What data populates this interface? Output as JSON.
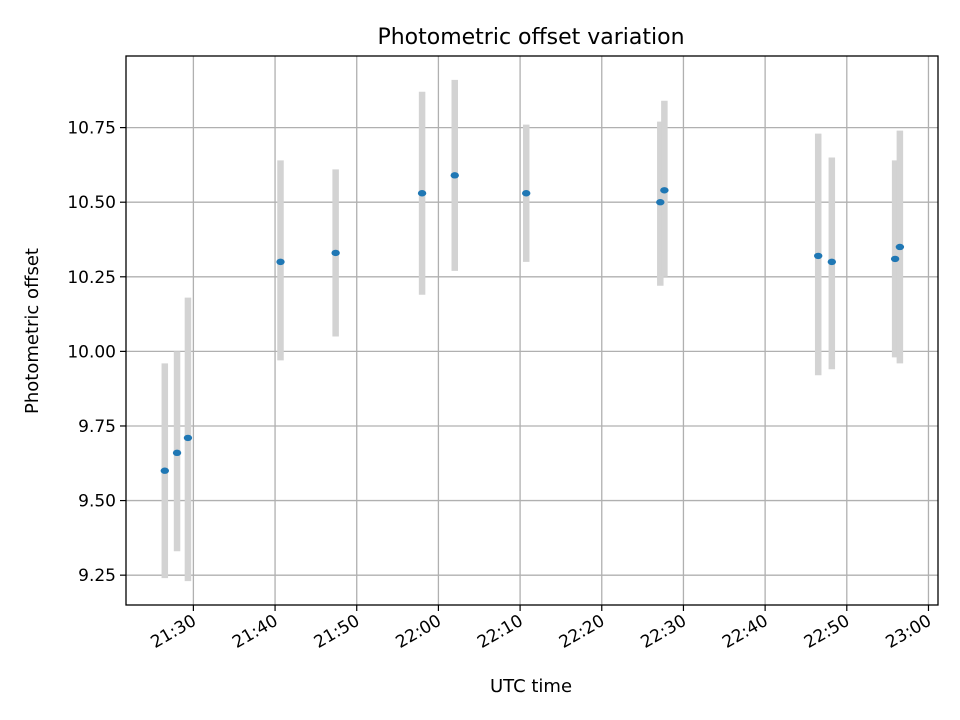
{
  "chart_data": {
    "type": "scatter",
    "title": "Photometric offset variation",
    "xlabel": "UTC time",
    "ylabel": "Photometric offset",
    "x_tick_labels": [
      "21:30",
      "21:40",
      "21:50",
      "22:00",
      "22:10",
      "22:20",
      "22:30",
      "22:40",
      "22:50",
      "23:00"
    ],
    "y_tick_labels": [
      "9.25",
      "9.50",
      "9.75",
      "10.00",
      "10.25",
      "10.50",
      "10.75"
    ],
    "xlim": [
      "21:21:45",
      "23:01:10"
    ],
    "ylim": [
      9.15,
      10.99
    ],
    "grid": true,
    "series": [
      {
        "marker_color": "#1f77b4",
        "errorbar_color": "#d3d3d3",
        "points": [
          {
            "x": "21:26:30",
            "y": 9.6,
            "ylow": 9.24,
            "yhigh": 9.96
          },
          {
            "x": "21:28:00",
            "y": 9.66,
            "ylow": 9.33,
            "yhigh": 10.0
          },
          {
            "x": "21:29:20",
            "y": 9.71,
            "ylow": 9.23,
            "yhigh": 10.18
          },
          {
            "x": "21:40:40",
            "y": 10.3,
            "ylow": 9.97,
            "yhigh": 10.64
          },
          {
            "x": "21:47:25",
            "y": 10.33,
            "ylow": 10.05,
            "yhigh": 10.61
          },
          {
            "x": "21:58:00",
            "y": 10.53,
            "ylow": 10.19,
            "yhigh": 10.87
          },
          {
            "x": "22:02:00",
            "y": 10.59,
            "ylow": 10.27,
            "yhigh": 10.91
          },
          {
            "x": "22:10:45",
            "y": 10.53,
            "ylow": 10.3,
            "yhigh": 10.76
          },
          {
            "x": "22:27:10",
            "y": 10.5,
            "ylow": 10.22,
            "yhigh": 10.77
          },
          {
            "x": "22:27:40",
            "y": 10.54,
            "ylow": 10.25,
            "yhigh": 10.84
          },
          {
            "x": "22:46:30",
            "y": 10.32,
            "ylow": 9.92,
            "yhigh": 10.73
          },
          {
            "x": "22:48:10",
            "y": 10.3,
            "ylow": 9.94,
            "yhigh": 10.65
          },
          {
            "x": "22:55:55",
            "y": 10.31,
            "ylow": 9.98,
            "yhigh": 10.64
          },
          {
            "x": "22:56:30",
            "y": 10.35,
            "ylow": 9.96,
            "yhigh": 10.74
          }
        ]
      }
    ]
  }
}
